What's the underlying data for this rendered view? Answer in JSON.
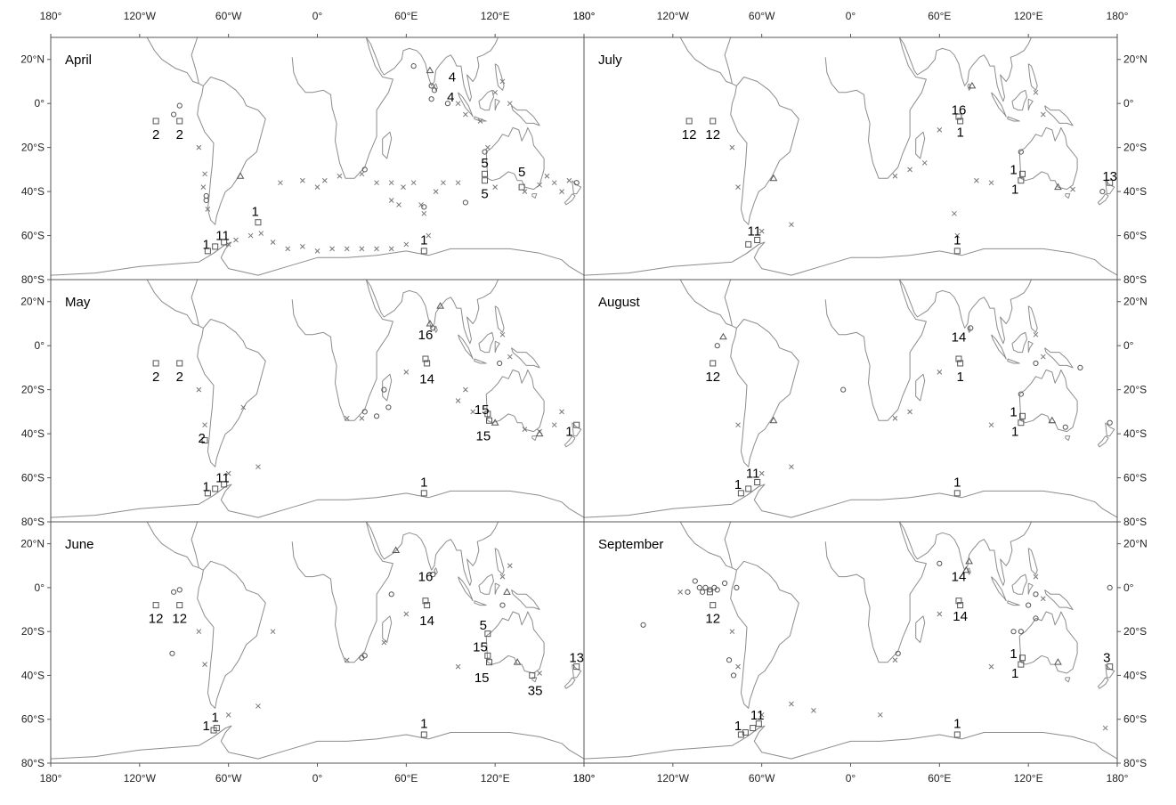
{
  "axes": {
    "lon_ticks": [
      "180°",
      "120°W",
      "60°W",
      "0°",
      "60°E",
      "120°E",
      "180°"
    ],
    "lat_ticks": [
      "20°N",
      "0°",
      "20°S",
      "40°S",
      "60°S",
      "80°S"
    ]
  },
  "panels": [
    {
      "title": "April",
      "labels": [
        {
          "text": "2",
          "lon": -109,
          "lat": -14
        },
        {
          "text": "2",
          "lon": -93,
          "lat": -14
        },
        {
          "text": "4",
          "lon": 91,
          "lat": 12
        },
        {
          "text": "4",
          "lon": 90,
          "lat": 3
        },
        {
          "text": "5",
          "lon": 113,
          "lat": -27
        },
        {
          "text": "5",
          "lon": 113,
          "lat": -41
        },
        {
          "text": "5",
          "lon": 138,
          "lat": -31
        },
        {
          "text": "1",
          "lon": -42,
          "lat": -49
        },
        {
          "text": "1",
          "lon": -75,
          "lat": -64
        },
        {
          "text": "11",
          "lon": -64,
          "lat": -60
        },
        {
          "text": "1",
          "lon": 72,
          "lat": -62
        }
      ],
      "squares": [
        [
          -109,
          -8
        ],
        [
          -93,
          -8
        ],
        [
          113,
          -32
        ],
        [
          113,
          -35
        ],
        [
          138,
          -38
        ],
        [
          -40,
          -54
        ],
        [
          -74,
          -67
        ],
        [
          -69,
          -65
        ],
        [
          -63,
          -63
        ],
        [
          72,
          -67
        ]
      ],
      "circles": [
        [
          -93,
          -1
        ],
        [
          -97,
          -5
        ],
        [
          65,
          17
        ],
        [
          77,
          8
        ],
        [
          79,
          6
        ],
        [
          77,
          2
        ],
        [
          88,
          0
        ],
        [
          113,
          -22
        ],
        [
          32,
          -30
        ],
        [
          100,
          -45
        ],
        [
          72,
          -47
        ],
        [
          -75,
          -42
        ],
        [
          -75,
          -44
        ],
        [
          175,
          -36
        ]
      ],
      "triangles": [
        [
          76,
          15
        ],
        [
          -52,
          -33
        ]
      ],
      "crosses": [
        [
          -80,
          -20
        ],
        [
          -76,
          -32
        ],
        [
          -77,
          -38
        ],
        [
          -74,
          -48
        ],
        [
          -60,
          -64
        ],
        [
          -55,
          -62
        ],
        [
          -45,
          -60
        ],
        [
          -38,
          -59
        ],
        [
          -30,
          -63
        ],
        [
          -20,
          -66
        ],
        [
          -10,
          -65
        ],
        [
          0,
          -67
        ],
        [
          10,
          -66
        ],
        [
          20,
          -66
        ],
        [
          30,
          -66
        ],
        [
          40,
          -66
        ],
        [
          50,
          -66
        ],
        [
          60,
          -64
        ],
        [
          75,
          -60
        ],
        [
          15,
          -33
        ],
        [
          30,
          -32
        ],
        [
          40,
          -36
        ],
        [
          50,
          -36
        ],
        [
          58,
          -38
        ],
        [
          65,
          -36
        ],
        [
          70,
          -46
        ],
        [
          72,
          -50
        ],
        [
          80,
          -40
        ],
        [
          50,
          -44
        ],
        [
          55,
          -46
        ],
        [
          85,
          -36
        ],
        [
          95,
          -36
        ],
        [
          120,
          -38
        ],
        [
          140,
          -40
        ],
        [
          150,
          -37
        ],
        [
          155,
          -33
        ],
        [
          160,
          -36
        ],
        [
          165,
          -40
        ],
        [
          170,
          -35
        ],
        [
          95,
          0
        ],
        [
          100,
          -5
        ],
        [
          110,
          -8
        ],
        [
          115,
          -20
        ],
        [
          120,
          5
        ],
        [
          125,
          10
        ],
        [
          130,
          0
        ],
        [
          -25,
          -36
        ],
        [
          -10,
          -35
        ],
        [
          0,
          -38
        ],
        [
          5,
          -35
        ]
      ]
    },
    {
      "title": "July",
      "labels": [
        {
          "text": "12",
          "lon": -109,
          "lat": -14
        },
        {
          "text": "12",
          "lon": -93,
          "lat": -14
        },
        {
          "text": "16",
          "lon": 73,
          "lat": -3
        },
        {
          "text": "1",
          "lon": 74,
          "lat": -13
        },
        {
          "text": "1",
          "lon": 110,
          "lat": -30
        },
        {
          "text": "1",
          "lon": 111,
          "lat": -39
        },
        {
          "text": "13",
          "lon": 175,
          "lat": -33
        },
        {
          "text": "11",
          "lon": -65,
          "lat": -58
        },
        {
          "text": "1",
          "lon": 72,
          "lat": -62
        }
      ],
      "squares": [
        [
          -109,
          -8
        ],
        [
          -93,
          -8
        ],
        [
          73,
          -6
        ],
        [
          74,
          -8
        ],
        [
          116,
          -32
        ],
        [
          115,
          -35
        ],
        [
          175,
          -36
        ],
        [
          -69,
          -64
        ],
        [
          -63,
          -62
        ],
        [
          72,
          -67
        ]
      ],
      "circles": [
        [
          115,
          -22
        ],
        [
          170,
          -40
        ]
      ],
      "triangles": [
        [
          82,
          8
        ],
        [
          -52,
          -34
        ],
        [
          140,
          -38
        ]
      ],
      "crosses": [
        [
          -80,
          -20
        ],
        [
          -76,
          -38
        ],
        [
          -60,
          -58
        ],
        [
          -40,
          -55
        ],
        [
          30,
          -33
        ],
        [
          40,
          -30
        ],
        [
          50,
          -27
        ],
        [
          70,
          -50
        ],
        [
          72,
          -60
        ],
        [
          85,
          -35
        ],
        [
          95,
          -36
        ],
        [
          125,
          5
        ],
        [
          130,
          -5
        ],
        [
          60,
          -12
        ],
        [
          150,
          -39
        ]
      ]
    },
    {
      "title": "May",
      "labels": [
        {
          "text": "2",
          "lon": -109,
          "lat": -14
        },
        {
          "text": "2",
          "lon": -93,
          "lat": -14
        },
        {
          "text": "16",
          "lon": 73,
          "lat": 5
        },
        {
          "text": "14",
          "lon": 74,
          "lat": -15
        },
        {
          "text": "15",
          "lon": 111,
          "lat": -29
        },
        {
          "text": "15",
          "lon": 112,
          "lat": -41
        },
        {
          "text": "1",
          "lon": 170,
          "lat": -39
        },
        {
          "text": "2",
          "lon": -78,
          "lat": -42
        },
        {
          "text": "1",
          "lon": -75,
          "lat": -64
        },
        {
          "text": "11",
          "lon": -64,
          "lat": -60
        },
        {
          "text": "1",
          "lon": 72,
          "lat": -62
        }
      ],
      "squares": [
        [
          -109,
          -8
        ],
        [
          -93,
          -8
        ],
        [
          73,
          -6
        ],
        [
          74,
          -8
        ],
        [
          115,
          -31
        ],
        [
          116,
          -34
        ],
        [
          175,
          -36
        ],
        [
          -74,
          -67
        ],
        [
          -69,
          -65
        ],
        [
          -63,
          -63
        ],
        [
          72,
          -67
        ],
        [
          -76,
          -43
        ]
      ],
      "circles": [
        [
          78,
          8
        ],
        [
          123,
          -8
        ],
        [
          32,
          -30
        ],
        [
          40,
          -32
        ],
        [
          45,
          -20
        ],
        [
          48,
          -28
        ]
      ],
      "triangles": [
        [
          83,
          18
        ],
        [
          76,
          10
        ],
        [
          120,
          -35
        ],
        [
          150,
          -40
        ]
      ],
      "crosses": [
        [
          -80,
          -20
        ],
        [
          -76,
          -36
        ],
        [
          -60,
          -58
        ],
        [
          -40,
          -55
        ],
        [
          -50,
          -28
        ],
        [
          20,
          -33
        ],
        [
          30,
          -33
        ],
        [
          60,
          -12
        ],
        [
          95,
          -25
        ],
        [
          100,
          -20
        ],
        [
          105,
          -30
        ],
        [
          125,
          5
        ],
        [
          130,
          -5
        ],
        [
          140,
          -38
        ],
        [
          150,
          -39
        ],
        [
          165,
          -30
        ],
        [
          160,
          -36
        ]
      ]
    },
    {
      "title": "August",
      "labels": [
        {
          "text": "12",
          "lon": -93,
          "lat": -14
        },
        {
          "text": "14",
          "lon": 73,
          "lat": 4
        },
        {
          "text": "1",
          "lon": 74,
          "lat": -14
        },
        {
          "text": "1",
          "lon": 110,
          "lat": -30
        },
        {
          "text": "1",
          "lon": 111,
          "lat": -39
        },
        {
          "text": "1",
          "lon": -76,
          "lat": -63
        },
        {
          "text": "11",
          "lon": -66,
          "lat": -58
        },
        {
          "text": "1",
          "lon": 72,
          "lat": -62
        }
      ],
      "squares": [
        [
          -93,
          -8
        ],
        [
          73,
          -6
        ],
        [
          74,
          -8
        ],
        [
          116,
          -32
        ],
        [
          115,
          -35
        ],
        [
          -74,
          -67
        ],
        [
          -69,
          -65
        ],
        [
          -63,
          -62
        ],
        [
          72,
          -67
        ]
      ],
      "circles": [
        [
          -90,
          0
        ],
        [
          81,
          8
        ],
        [
          125,
          -8
        ],
        [
          115,
          -22
        ],
        [
          -5,
          -20
        ],
        [
          145,
          -37
        ],
        [
          175,
          -35
        ],
        [
          155,
          -10
        ]
      ],
      "triangles": [
        [
          -86,
          4
        ],
        [
          -52,
          -34
        ],
        [
          136,
          -34
        ]
      ],
      "crosses": [
        [
          -76,
          -36
        ],
        [
          -60,
          -58
        ],
        [
          -40,
          -55
        ],
        [
          30,
          -33
        ],
        [
          40,
          -30
        ],
        [
          60,
          -12
        ],
        [
          95,
          -36
        ],
        [
          125,
          5
        ],
        [
          130,
          -5
        ]
      ]
    },
    {
      "title": "June",
      "labels": [
        {
          "text": "12",
          "lon": -109,
          "lat": -14
        },
        {
          "text": "12",
          "lon": -93,
          "lat": -14
        },
        {
          "text": "16",
          "lon": 73,
          "lat": 5
        },
        {
          "text": "14",
          "lon": 74,
          "lat": -15
        },
        {
          "text": "5",
          "lon": 112,
          "lat": -17
        },
        {
          "text": "15",
          "lon": 110,
          "lat": -27
        },
        {
          "text": "15",
          "lon": 111,
          "lat": -41
        },
        {
          "text": "35",
          "lon": 147,
          "lat": -47
        },
        {
          "text": "13",
          "lon": 175,
          "lat": -32
        },
        {
          "text": "1",
          "lon": -75,
          "lat": -63
        },
        {
          "text": "1",
          "lon": -69,
          "lat": -59
        },
        {
          "text": "1",
          "lon": 72,
          "lat": -62
        }
      ],
      "squares": [
        [
          -109,
          -8
        ],
        [
          -93,
          -8
        ],
        [
          73,
          -6
        ],
        [
          74,
          -8
        ],
        [
          115,
          -21
        ],
        [
          115,
          -31
        ],
        [
          116,
          -34
        ],
        [
          145,
          -40
        ],
        [
          175,
          -36
        ],
        [
          -70,
          -65
        ],
        [
          -68,
          -64
        ],
        [
          72,
          -67
        ]
      ],
      "circles": [
        [
          -93,
          -1
        ],
        [
          -97,
          -2
        ],
        [
          -98,
          -30
        ],
        [
          78,
          6
        ],
        [
          50,
          -3
        ],
        [
          125,
          -8
        ],
        [
          32,
          -31
        ],
        [
          30,
          -32
        ]
      ],
      "triangles": [
        [
          53,
          17
        ],
        [
          128,
          -2
        ],
        [
          135,
          -34
        ]
      ],
      "crosses": [
        [
          -80,
          -20
        ],
        [
          -76,
          -35
        ],
        [
          -60,
          -58
        ],
        [
          -40,
          -54
        ],
        [
          -30,
          -20
        ],
        [
          20,
          -33
        ],
        [
          45,
          -25
        ],
        [
          60,
          -12
        ],
        [
          95,
          -36
        ],
        [
          125,
          5
        ],
        [
          130,
          10
        ],
        [
          150,
          -39
        ]
      ]
    },
    {
      "title": "September",
      "labels": [
        {
          "text": "12",
          "lon": -93,
          "lat": -14
        },
        {
          "text": "14",
          "lon": 73,
          "lat": 5
        },
        {
          "text": "14",
          "lon": 74,
          "lat": -13
        },
        {
          "text": "1",
          "lon": 110,
          "lat": -30
        },
        {
          "text": "1",
          "lon": 111,
          "lat": -39
        },
        {
          "text": "3",
          "lon": 173,
          "lat": -32
        },
        {
          "text": "1",
          "lon": -76,
          "lat": -63
        },
        {
          "text": "11",
          "lon": -63,
          "lat": -58
        },
        {
          "text": "1",
          "lon": 72,
          "lat": -62
        }
      ],
      "squares": [
        [
          -93,
          -8
        ],
        [
          73,
          -6
        ],
        [
          74,
          -8
        ],
        [
          116,
          -32
        ],
        [
          115,
          -35
        ],
        [
          175,
          -36
        ],
        [
          -74,
          -67
        ],
        [
          -71,
          -66
        ],
        [
          -66,
          -64
        ],
        [
          -62,
          -62
        ],
        [
          72,
          -67
        ],
        [
          -95,
          -2
        ]
      ],
      "circles": [
        [
          -110,
          -2
        ],
        [
          -105,
          3
        ],
        [
          -102,
          0
        ],
        [
          -100,
          -2
        ],
        [
          -98,
          0
        ],
        [
          -95,
          -1
        ],
        [
          -92,
          0
        ],
        [
          -90,
          -1
        ],
        [
          -85,
          2
        ],
        [
          -140,
          -17
        ],
        [
          -82,
          -33
        ],
        [
          -79,
          -40
        ],
        [
          -77,
          0
        ],
        [
          60,
          11
        ],
        [
          32,
          -30
        ],
        [
          125,
          -3
        ],
        [
          120,
          -8
        ],
        [
          115,
          -20
        ],
        [
          110,
          -20
        ],
        [
          125,
          -14
        ],
        [
          175,
          0
        ]
      ],
      "triangles": [
        [
          80,
          12
        ],
        [
          78,
          8
        ],
        [
          140,
          -34
        ]
      ],
      "crosses": [
        [
          -115,
          -2
        ],
        [
          -80,
          -20
        ],
        [
          -76,
          -36
        ],
        [
          -60,
          -58
        ],
        [
          -40,
          -53
        ],
        [
          -25,
          -56
        ],
        [
          20,
          -58
        ],
        [
          30,
          -33
        ],
        [
          60,
          -12
        ],
        [
          95,
          -36
        ],
        [
          125,
          5
        ],
        [
          130,
          -5
        ],
        [
          172,
          -64
        ]
      ]
    }
  ]
}
